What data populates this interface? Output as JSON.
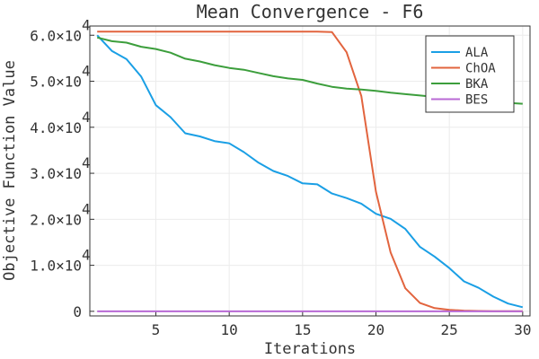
{
  "chart_data": {
    "type": "line",
    "title": "Mean Convergence - F6",
    "xlabel": "Iterations",
    "ylabel": "Objective Function Value",
    "xlim": [
      0.5,
      30.5
    ],
    "ylim": [
      -1000,
      62000
    ],
    "grid": true,
    "legend_position": "top-right",
    "x_ticks": [
      5,
      10,
      15,
      20,
      25,
      30
    ],
    "x_tick_labels": [
      "5",
      "10",
      "15",
      "20",
      "25",
      "30"
    ],
    "y_ticks": [
      0,
      10000,
      20000,
      30000,
      40000,
      50000,
      60000
    ],
    "y_tick_labels": [
      {
        "base": "0",
        "exp": ""
      },
      {
        "base": "1.0×10",
        "exp": "4"
      },
      {
        "base": "2.0×10",
        "exp": "4"
      },
      {
        "base": "3.0×10",
        "exp": "4"
      },
      {
        "base": "4.0×10",
        "exp": "4"
      },
      {
        "base": "5.0×10",
        "exp": "4"
      },
      {
        "base": "6.0×10",
        "exp": "4"
      }
    ],
    "x": [
      1,
      2,
      3,
      4,
      5,
      6,
      7,
      8,
      9,
      10,
      11,
      12,
      13,
      14,
      15,
      16,
      17,
      18,
      19,
      20,
      21,
      22,
      23,
      24,
      25,
      26,
      27,
      28,
      29,
      30
    ],
    "series": [
      {
        "name": "ALA",
        "color": "#1a9fe5",
        "values": [
          60000,
          56600,
          54800,
          51000,
          44800,
          42200,
          38700,
          38000,
          37000,
          36500,
          34600,
          32300,
          30500,
          29400,
          27800,
          27600,
          25600,
          24600,
          23400,
          21200,
          20100,
          17900,
          14000,
          11900,
          9400,
          6500,
          5100,
          3200,
          1700,
          900
        ]
      },
      {
        "name": "ChOA",
        "color": "#e2643e",
        "values": [
          60800,
          60800,
          60800,
          60800,
          60800,
          60800,
          60800,
          60800,
          60800,
          60800,
          60800,
          60800,
          60800,
          60800,
          60800,
          60800,
          60700,
          56300,
          46800,
          26000,
          12800,
          5000,
          1800,
          700,
          300,
          150,
          80,
          40,
          20,
          10
        ]
      },
      {
        "name": "BKA",
        "color": "#3c9e3c",
        "values": [
          59500,
          58700,
          58400,
          57500,
          57000,
          56200,
          54900,
          54300,
          53500,
          52900,
          52500,
          51800,
          51100,
          50600,
          50300,
          49500,
          48800,
          48400,
          48200,
          47900,
          47500,
          47200,
          46900,
          46600,
          46300,
          46000,
          45700,
          45500,
          45300,
          45100
        ]
      },
      {
        "name": "BES",
        "color": "#b869d4",
        "values": [
          0,
          0,
          0,
          0,
          0,
          0,
          0,
          0,
          0,
          0,
          0,
          0,
          0,
          0,
          0,
          0,
          0,
          0,
          0,
          0,
          0,
          0,
          0,
          0,
          0,
          0,
          0,
          0,
          0,
          0
        ]
      }
    ]
  }
}
